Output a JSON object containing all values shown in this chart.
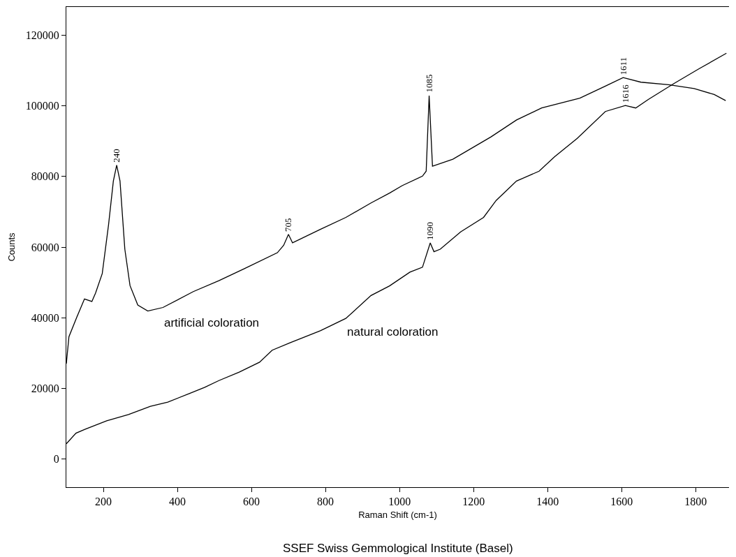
{
  "chart_data": {
    "type": "line",
    "xlabel": "Raman Shift (cm-1)",
    "ylabel": "Counts",
    "xlim": [
      100,
      1890
    ],
    "xticks": [
      200,
      400,
      600,
      800,
      1000,
      1200,
      1400,
      1600,
      1800
    ],
    "ylim": [
      -8000,
      128000
    ],
    "yticks": [
      0,
      20000,
      40000,
      60000,
      80000,
      100000,
      120000
    ],
    "grid": false,
    "legend": false,
    "marker": "none",
    "line_style": "solid",
    "series": [
      {
        "name": "artificial coloration",
        "color": "#000000",
        "x": [
          100,
          107,
          128,
          149,
          169,
          179,
          197,
          214,
          227,
          236,
          245,
          258,
          272,
          293,
          320,
          361,
          443,
          512,
          581,
          670,
          687,
          700,
          711,
          786,
          855,
          923,
          973,
          1007,
          1062,
          1072,
          1080,
          1089,
          1144,
          1247,
          1316,
          1384,
          1487,
          1556,
          1604,
          1652,
          1727,
          1796,
          1850,
          1881
        ],
        "values": [
          27000,
          34600,
          40100,
          45300,
          44600,
          47000,
          52500,
          66300,
          78700,
          83200,
          78700,
          59400,
          49100,
          43600,
          41900,
          42900,
          47400,
          50500,
          53900,
          58400,
          60500,
          63600,
          61200,
          65000,
          68400,
          72500,
          75300,
          77400,
          80100,
          81500,
          102900,
          82900,
          84900,
          91200,
          96000,
          99400,
          102200,
          105600,
          108000,
          106700,
          106000,
          104900,
          103200,
          101500
        ]
      },
      {
        "name": "natural coloration",
        "color": "#000000",
        "x": [
          100,
          126,
          150,
          209,
          268,
          327,
          374,
          432,
          474,
          512,
          567,
          622,
          656,
          704,
          786,
          855,
          923,
          973,
          1028,
          1062,
          1083,
          1093,
          1110,
          1165,
          1227,
          1261,
          1316,
          1377,
          1419,
          1480,
          1556,
          1610,
          1638,
          1672,
          1741,
          1809,
          1883
        ],
        "values": [
          4300,
          7300,
          8400,
          10800,
          12600,
          14900,
          16100,
          18500,
          20300,
          22200,
          24600,
          27400,
          30800,
          32900,
          36300,
          39800,
          46300,
          49000,
          52900,
          54300,
          61200,
          58700,
          59400,
          64300,
          68400,
          73200,
          78700,
          81500,
          85600,
          90800,
          98400,
          100100,
          99400,
          101800,
          106300,
          110500,
          114900
        ]
      }
    ],
    "annotations": [
      {
        "text": "240",
        "x": 236,
        "y": 83200
      },
      {
        "text": "705",
        "x": 700,
        "y": 63600
      },
      {
        "text": "1085",
        "x": 1080,
        "y": 102900
      },
      {
        "text": "1090",
        "x": 1083,
        "y": 61200
      },
      {
        "text": "1611",
        "x": 1604,
        "y": 108000
      },
      {
        "text": "1616",
        "x": 1610,
        "y": 100100
      },
      "SSEF Swiss Gemmological Institute (Basel)"
    ]
  }
}
